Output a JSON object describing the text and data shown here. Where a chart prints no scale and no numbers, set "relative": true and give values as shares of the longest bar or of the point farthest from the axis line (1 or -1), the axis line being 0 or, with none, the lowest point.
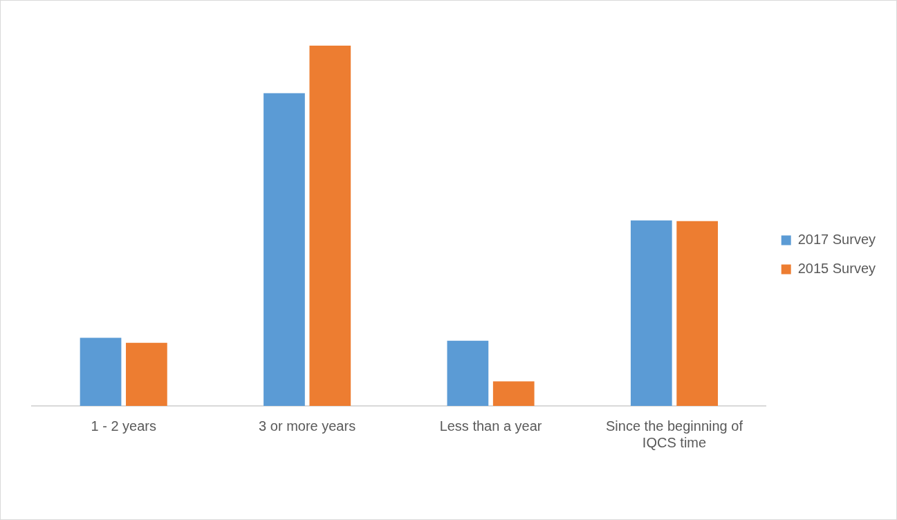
{
  "chart_data": {
    "type": "bar",
    "relative": true,
    "categories": [
      "1 - 2 years",
      "3 or more years",
      "Less than a year",
      "Since the beginning of IQCS time"
    ],
    "series": [
      {
        "name": "2017 Survey",
        "color": "#5b9bd5",
        "values": [
          0.189,
          0.868,
          0.181,
          0.515
        ]
      },
      {
        "name": "2015 Survey",
        "color": "#ed7d31",
        "values": [
          0.175,
          1,
          0.068,
          0.513
        ]
      }
    ],
    "grid": false,
    "legend": "right"
  }
}
